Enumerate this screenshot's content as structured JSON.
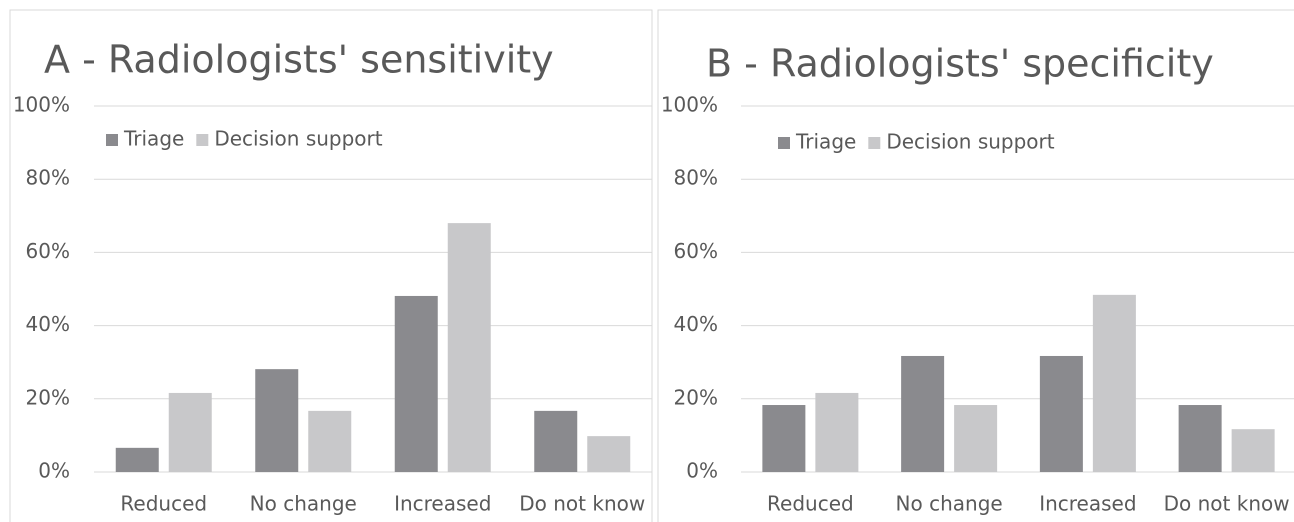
{
  "chart_data": [
    {
      "type": "bar",
      "title": "A - Radiologists' sensitivity",
      "categories": [
        "Reduced",
        "No change",
        "Increased",
        "Do not know"
      ],
      "series": [
        {
          "name": "Triage",
          "color": "#8a8a8e",
          "values": [
            6.6,
            28.1,
            48.1,
            16.7
          ]
        },
        {
          "name": "Decision support",
          "color": "#c8c8ca",
          "values": [
            21.6,
            16.7,
            68,
            9.8
          ]
        }
      ],
      "ylim": [
        0,
        100
      ],
      "yticks": [
        {
          "value": 0,
          "label": "0%"
        },
        {
          "value": 20,
          "label": "20%"
        },
        {
          "value": 40,
          "label": "40%"
        },
        {
          "value": 60,
          "label": "60%"
        },
        {
          "value": 80,
          "label": "80%"
        },
        {
          "value": 100,
          "label": "100%"
        }
      ],
      "grid": true,
      "legend": "top-left"
    },
    {
      "type": "bar",
      "title": "B - Radiologists' specificity",
      "categories": [
        "Reduced",
        "No change",
        "Increased",
        "Do not know"
      ],
      "series": [
        {
          "name": "Triage",
          "color": "#8a8a8e",
          "values": [
            18.3,
            31.7,
            31.7,
            18.3
          ]
        },
        {
          "name": "Decision support",
          "color": "#c8c8ca",
          "values": [
            21.6,
            18.3,
            48.4,
            11.7
          ]
        }
      ],
      "ylim": [
        0,
        100
      ],
      "yticks": [
        {
          "value": 0,
          "label": "0%"
        },
        {
          "value": 20,
          "label": "20%"
        },
        {
          "value": 40,
          "label": "40%"
        },
        {
          "value": 60,
          "label": "60%"
        },
        {
          "value": 80,
          "label": "80%"
        },
        {
          "value": 100,
          "label": "100%"
        }
      ],
      "grid": true,
      "legend": "top-left"
    }
  ]
}
